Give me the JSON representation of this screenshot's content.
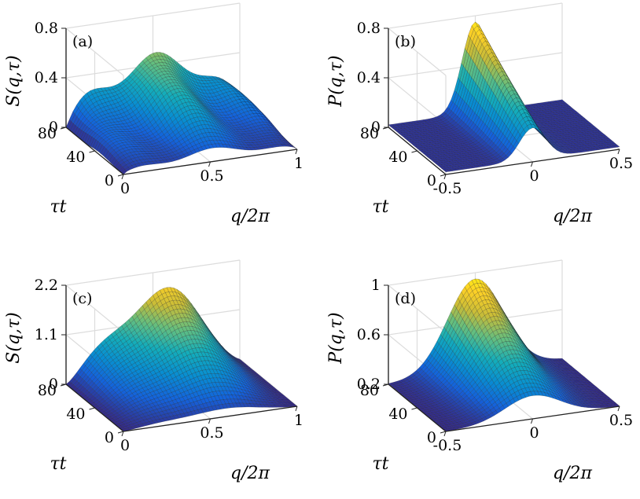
{
  "chart_data": [
    {
      "type": "surface",
      "panel_label": "(a)",
      "zlabel": "S(q,τ)",
      "xlabel": "q/2π",
      "ylabel": "τt",
      "xlim": [
        0,
        1
      ],
      "ylim": [
        0,
        80
      ],
      "zlim": [
        0,
        0.8
      ],
      "xticks": [
        "0",
        "0.5",
        "1"
      ],
      "yticks": [
        "0",
        "40",
        "80"
      ],
      "zticks": [
        "0",
        "0.4",
        "0.8"
      ],
      "description_peak": "double-humped ridge, max ~0.55 near q≈0.3 and q≈0.75"
    },
    {
      "type": "surface",
      "panel_label": "(b)",
      "zlabel": "P(q,τ)",
      "xlabel": "q/2π",
      "ylabel": "τt",
      "xlim": [
        -0.5,
        0.5
      ],
      "ylim": [
        0,
        80
      ],
      "zlim": [
        0,
        0.8
      ],
      "xticks": [
        "-0.5",
        "0",
        "0.5"
      ],
      "yticks": [
        "0",
        "40",
        "80"
      ],
      "zticks": [
        "0",
        "0.4",
        "0.8"
      ],
      "description_peak": "single sharp peak ~0.75 at q=0, large τt"
    },
    {
      "type": "surface",
      "panel_label": "(c)",
      "zlabel": "S(q,τ)",
      "xlabel": "q/2π",
      "ylabel": "τt",
      "xlim": [
        0,
        1
      ],
      "ylim": [
        0,
        80
      ],
      "zlim": [
        0,
        2.2
      ],
      "xticks": [
        "0",
        "0.5",
        "1"
      ],
      "yticks": [
        "0",
        "40",
        "80"
      ],
      "zticks": [
        "0",
        "1.1",
        "2.2"
      ],
      "description_peak": "ridge max ~2.0 near q≈0.45 at large τt"
    },
    {
      "type": "surface",
      "panel_label": "(d)",
      "zlabel": "P(q,τ)",
      "xlabel": "q/2π",
      "ylabel": "τt",
      "xlim": [
        -0.5,
        0.5
      ],
      "ylim": [
        0,
        80
      ],
      "zlim": [
        0.2,
        1
      ],
      "xticks": [
        "-0.5",
        "0",
        "0.5"
      ],
      "yticks": [
        "0",
        "40",
        "80"
      ],
      "zticks": [
        "0.2",
        "0.6",
        "1"
      ],
      "description_peak": "broad ridge max ~0.95 at q=0"
    }
  ]
}
